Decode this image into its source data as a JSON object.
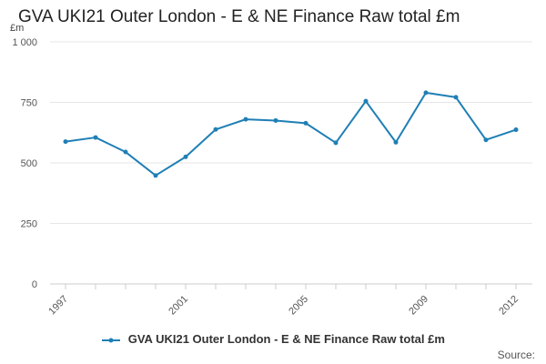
{
  "chart_data": {
    "type": "line",
    "title": "GVA UKI21 Outer London - E & NE Finance Raw total £m",
    "ylabel": "£m",
    "xlabel": "",
    "ylim": [
      0,
      1000
    ],
    "yticks": [
      0,
      250,
      500,
      750,
      1000
    ],
    "ytick_labels": [
      "0",
      "250",
      "500",
      "750",
      "1 000"
    ],
    "xtick_labels": [
      "1997",
      "2001",
      "2005",
      "2009",
      "2012"
    ],
    "x": [
      "1997",
      "1998",
      "1999",
      "2000",
      "2001",
      "2002",
      "2003",
      "2004",
      "2005",
      "2006",
      "2007",
      "2008",
      "2009",
      "2010",
      "2011",
      "2012"
    ],
    "series": [
      {
        "name": "GVA UKI21 Outer London - E & NE Finance Raw total £m",
        "values": [
          588,
          605,
          545,
          448,
          525,
          638,
          680,
          675,
          664,
          583,
          755,
          585,
          790,
          771,
          595,
          637
        ]
      }
    ],
    "grid": true,
    "legend_position": "bottom",
    "colors": {
      "series": "#1f7fb5",
      "grid": "#e6e6e6",
      "axis": "#cccccc"
    }
  },
  "footer": {
    "source_label": "Source:"
  }
}
